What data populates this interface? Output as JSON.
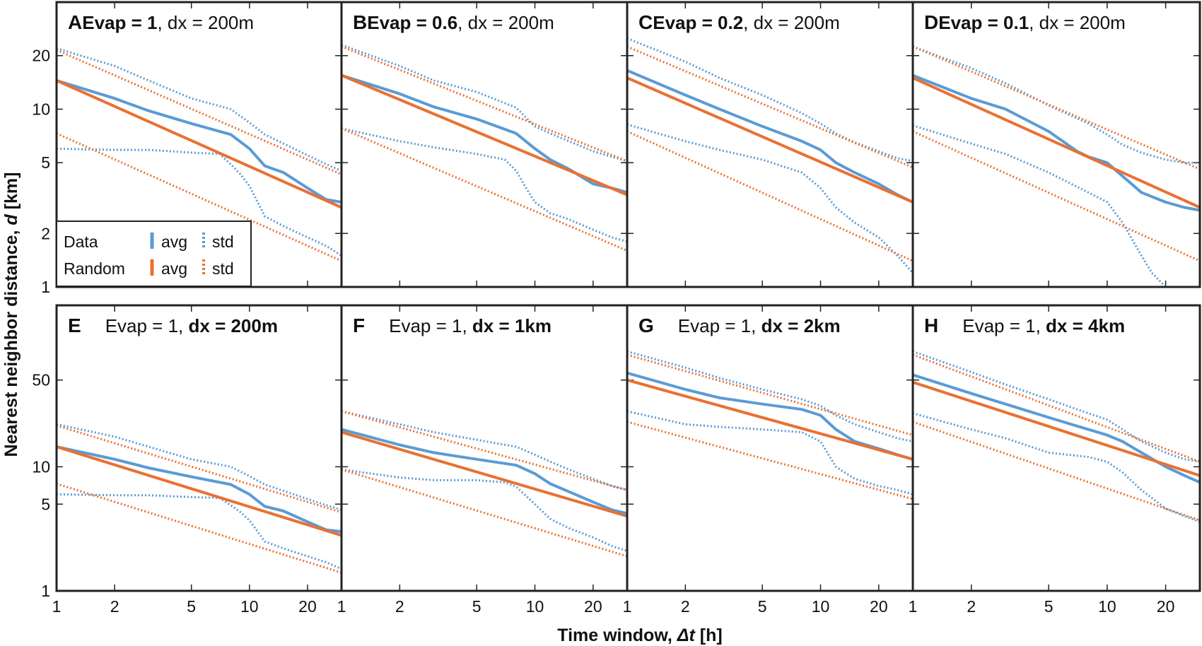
{
  "figure": {
    "ylabel_prefix": "Nearest neighbor distance, ",
    "ylabel_var": "d",
    "ylabel_unit": " [km]",
    "xlabel_prefix": "Time window, ",
    "xlabel_var": "Δt",
    "xlabel_unit": " [h]"
  },
  "legend": {
    "data_label": "Data",
    "random_label": "Random",
    "avg_label": "avg",
    "std_label": "std"
  },
  "colors": {
    "data": "#5B9BD5",
    "random": "#E97132",
    "frame": "#222222"
  },
  "chart_data": [
    {
      "type": "line",
      "letter": "A",
      "title_plain_before": "",
      "title_bold": "Evap = 1",
      "title_plain_after": ", dx = 200m",
      "xscale": "log",
      "yscale": "log",
      "xlim": [
        1,
        30
      ],
      "ylim": [
        1,
        40
      ],
      "series": [
        {
          "name": "Data avg",
          "x": [
            1,
            2,
            3,
            5,
            8,
            10,
            12,
            15,
            20,
            25,
            30
          ],
          "y": [
            14.5,
            11.5,
            9.8,
            8.3,
            7.2,
            6.0,
            4.8,
            4.4,
            3.6,
            3.1,
            3.0
          ]
        },
        {
          "name": "Data std upper",
          "x": [
            1,
            2,
            3,
            5,
            8,
            10,
            12,
            15,
            20,
            25,
            30
          ],
          "y": [
            22,
            17.5,
            14.5,
            11.5,
            10,
            8.4,
            7.2,
            6.4,
            5.5,
            4.9,
            4.5
          ]
        },
        {
          "name": "Data std lower",
          "x": [
            1,
            2,
            3,
            5,
            7,
            8,
            9,
            10,
            12,
            15,
            20,
            25,
            30
          ],
          "y": [
            6,
            5.9,
            5.9,
            5.7,
            5.6,
            4.9,
            4.3,
            3.7,
            2.5,
            2.2,
            1.9,
            1.7,
            1.5
          ]
        },
        {
          "name": "Random avg",
          "x": [
            1,
            30
          ],
          "y": [
            14.5,
            2.8
          ]
        },
        {
          "name": "Random std upper",
          "x": [
            1,
            30
          ],
          "y": [
            21.5,
            4.3
          ]
        },
        {
          "name": "Random std lower",
          "x": [
            1,
            30
          ],
          "y": [
            7.3,
            1.4
          ]
        }
      ]
    },
    {
      "type": "line",
      "letter": "B",
      "title_plain_before": "",
      "title_bold": "Evap = 0.6",
      "title_plain_after": ", dx = 200m",
      "xscale": "log",
      "yscale": "log",
      "xlim": [
        1,
        30
      ],
      "ylim": [
        1,
        40
      ],
      "series": [
        {
          "name": "Data avg",
          "x": [
            1,
            2,
            3,
            5,
            8,
            10,
            12,
            15,
            20,
            25,
            30
          ],
          "y": [
            15.5,
            12.2,
            10.3,
            8.8,
            7.3,
            6.0,
            5.2,
            4.6,
            3.8,
            3.6,
            3.4
          ]
        },
        {
          "name": "Data std upper",
          "x": [
            1,
            2,
            3,
            5,
            8,
            10,
            12,
            15,
            20,
            25,
            30
          ],
          "y": [
            23,
            17.5,
            14.5,
            12.5,
            10.2,
            8.0,
            7.3,
            6.6,
            5.8,
            5.4,
            5.1
          ]
        },
        {
          "name": "Data std lower",
          "x": [
            1,
            2,
            3,
            5,
            7,
            8,
            9,
            10,
            12,
            15,
            20,
            25,
            30
          ],
          "y": [
            7.8,
            6.6,
            6.1,
            5.6,
            5.2,
            4.5,
            3.6,
            3.0,
            2.6,
            2.4,
            2.1,
            1.9,
            1.8
          ]
        },
        {
          "name": "Random avg",
          "x": [
            1,
            30
          ],
          "y": [
            15.5,
            3.3
          ]
        },
        {
          "name": "Random std upper",
          "x": [
            1,
            30
          ],
          "y": [
            22.5,
            5.1
          ]
        },
        {
          "name": "Random std lower",
          "x": [
            1,
            30
          ],
          "y": [
            7.8,
            1.6
          ]
        }
      ]
    },
    {
      "type": "line",
      "letter": "C",
      "title_plain_before": "",
      "title_bold": "Evap = 0.2",
      "title_plain_after": ", dx = 200m",
      "xscale": "log",
      "yscale": "log",
      "xlim": [
        1,
        30
      ],
      "ylim": [
        1,
        40
      ],
      "series": [
        {
          "name": "Data avg",
          "x": [
            1,
            2,
            3,
            5,
            8,
            10,
            12,
            15,
            20,
            25,
            30
          ],
          "y": [
            16.5,
            12.0,
            10.0,
            8.0,
            6.6,
            5.9,
            5.0,
            4.4,
            3.8,
            3.3,
            3.0
          ]
        },
        {
          "name": "Data std upper",
          "x": [
            1,
            2,
            3,
            5,
            8,
            10,
            12,
            15,
            20,
            25,
            30
          ],
          "y": [
            25,
            18.5,
            15,
            12,
            9.5,
            8.3,
            7.3,
            6.5,
            5.8,
            5.3,
            5.1
          ]
        },
        {
          "name": "Data std lower",
          "x": [
            1,
            2,
            3,
            5,
            8,
            10,
            12,
            15,
            20,
            25,
            30
          ],
          "y": [
            8.2,
            6.6,
            5.9,
            5.2,
            4.4,
            3.6,
            2.8,
            2.3,
            1.9,
            1.5,
            1.2
          ]
        },
        {
          "name": "Random avg",
          "x": [
            1,
            30
          ],
          "y": [
            15,
            3.0
          ]
        },
        {
          "name": "Random std upper",
          "x": [
            1,
            30
          ],
          "y": [
            22.5,
            4.7
          ]
        },
        {
          "name": "Random std lower",
          "x": [
            1,
            30
          ],
          "y": [
            7.5,
            1.4
          ]
        }
      ]
    },
    {
      "type": "line",
      "letter": "D",
      "title_plain_before": "",
      "title_bold": "Evap = 0.1",
      "title_plain_after": ", dx = 200m",
      "xscale": "log",
      "yscale": "log",
      "xlim": [
        1,
        30
      ],
      "ylim": [
        1,
        40
      ],
      "series": [
        {
          "name": "Data avg",
          "x": [
            1,
            2,
            3,
            5,
            7,
            8,
            10,
            12,
            15,
            20,
            25,
            30
          ],
          "y": [
            15.5,
            11.5,
            10.0,
            7.5,
            5.8,
            5.4,
            5.0,
            4.2,
            3.4,
            3.0,
            2.8,
            2.7
          ]
        },
        {
          "name": "Data std upper",
          "x": [
            1,
            2,
            3,
            5,
            8,
            10,
            12,
            15,
            20,
            25,
            30
          ],
          "y": [
            22.5,
            17,
            14,
            10.5,
            8.3,
            7.2,
            6.3,
            5.7,
            5.2,
            5.0,
            5.0
          ]
        },
        {
          "name": "Data std lower",
          "x": [
            1,
            2,
            3,
            5,
            8,
            10,
            12,
            15,
            17,
            20
          ],
          "y": [
            8.1,
            6.4,
            5.6,
            4.4,
            3.4,
            3.0,
            2.3,
            1.5,
            1.2,
            1.0
          ]
        },
        {
          "name": "Random avg",
          "x": [
            1,
            30
          ],
          "y": [
            15,
            2.8
          ]
        },
        {
          "name": "Random std upper",
          "x": [
            1,
            30
          ],
          "y": [
            22.5,
            4.6
          ]
        },
        {
          "name": "Random std lower",
          "x": [
            1,
            30
          ],
          "y": [
            7.5,
            1.4
          ]
        }
      ]
    },
    {
      "type": "line",
      "letter": "E",
      "title_plain_before": "Evap = 1, ",
      "title_bold": "dx = 200m",
      "title_plain_after": "",
      "xscale": "log",
      "yscale": "log",
      "xlim": [
        1,
        30
      ],
      "ylim": [
        1,
        200
      ],
      "series": [
        {
          "name": "Data avg",
          "x": [
            1,
            2,
            3,
            5,
            8,
            10,
            12,
            15,
            20,
            25,
            30
          ],
          "y": [
            14.5,
            11.5,
            9.8,
            8.3,
            7.2,
            6.0,
            4.8,
            4.4,
            3.6,
            3.1,
            3.0
          ]
        },
        {
          "name": "Data std upper",
          "x": [
            1,
            2,
            3,
            5,
            8,
            10,
            12,
            15,
            20,
            25,
            30
          ],
          "y": [
            22,
            17.5,
            14.5,
            11.5,
            10,
            8.4,
            7.2,
            6.4,
            5.5,
            4.9,
            4.5
          ]
        },
        {
          "name": "Data std lower",
          "x": [
            1,
            2,
            3,
            5,
            7,
            8,
            9,
            10,
            12,
            15,
            20,
            25,
            30
          ],
          "y": [
            6,
            5.9,
            5.9,
            5.7,
            5.6,
            4.9,
            4.3,
            3.7,
            2.5,
            2.2,
            1.9,
            1.7,
            1.5
          ]
        },
        {
          "name": "Random avg",
          "x": [
            1,
            30
          ],
          "y": [
            14.5,
            2.8
          ]
        },
        {
          "name": "Random std upper",
          "x": [
            1,
            30
          ],
          "y": [
            21.5,
            4.3
          ]
        },
        {
          "name": "Random std lower",
          "x": [
            1,
            30
          ],
          "y": [
            7.3,
            1.4
          ]
        }
      ]
    },
    {
      "type": "line",
      "letter": "F",
      "title_plain_before": "Evap = 1, ",
      "title_bold": "dx = 1km",
      "title_plain_after": "",
      "xscale": "log",
      "yscale": "log",
      "xlim": [
        1,
        30
      ],
      "ylim": [
        1,
        200
      ],
      "series": [
        {
          "name": "Data avg",
          "x": [
            1,
            2,
            3,
            5,
            8,
            10,
            12,
            15,
            20,
            25,
            30
          ],
          "y": [
            20,
            15,
            13,
            11.5,
            10.3,
            8.8,
            7.3,
            6.3,
            5.2,
            4.5,
            4.2
          ]
        },
        {
          "name": "Data std upper",
          "x": [
            1,
            2,
            3,
            5,
            8,
            10,
            12,
            15,
            20,
            25,
            30
          ],
          "y": [
            28,
            22,
            19,
            16.5,
            14.5,
            12.5,
            11,
            9.5,
            8,
            7,
            6.5
          ]
        },
        {
          "name": "Data std lower",
          "x": [
            1,
            2,
            3,
            5,
            7,
            8,
            10,
            12,
            15,
            20,
            25,
            30
          ],
          "y": [
            9.5,
            8.2,
            7.8,
            7.8,
            7.5,
            6.9,
            5.0,
            3.8,
            3.2,
            2.7,
            2.3,
            2.1
          ]
        },
        {
          "name": "Random avg",
          "x": [
            1,
            30
          ],
          "y": [
            19,
            4.0
          ]
        },
        {
          "name": "Random std upper",
          "x": [
            1,
            30
          ],
          "y": [
            28,
            6.5
          ]
        },
        {
          "name": "Random std lower",
          "x": [
            1,
            30
          ],
          "y": [
            9.5,
            1.9
          ]
        }
      ]
    },
    {
      "type": "line",
      "letter": "G",
      "title_plain_before": "Evap = 1, ",
      "title_bold": "dx = 2km",
      "title_plain_after": "",
      "xscale": "log",
      "yscale": "log",
      "xlim": [
        1,
        30
      ],
      "ylim": [
        1,
        200
      ],
      "series": [
        {
          "name": "Data avg",
          "x": [
            1,
            2,
            3,
            5,
            8,
            10,
            12,
            15,
            20,
            25,
            30
          ],
          "y": [
            57,
            42,
            36,
            32,
            29,
            26,
            20,
            16,
            14,
            12.5,
            11.5
          ]
        },
        {
          "name": "Data std upper",
          "x": [
            1,
            2,
            3,
            5,
            8,
            10,
            12,
            15,
            20,
            25,
            30
          ],
          "y": [
            85,
            63,
            52,
            42,
            35,
            31,
            26,
            22,
            19,
            17,
            16
          ]
        },
        {
          "name": "Data std lower",
          "x": [
            1,
            2,
            3,
            5,
            8,
            10,
            12,
            15,
            20,
            25,
            30
          ],
          "y": [
            28,
            22,
            21,
            20,
            19,
            16,
            10,
            8,
            7,
            6.5,
            6
          ]
        },
        {
          "name": "Random avg",
          "x": [
            1,
            30
          ],
          "y": [
            50,
            11.5
          ]
        },
        {
          "name": "Random std upper",
          "x": [
            1,
            30
          ],
          "y": [
            80,
            18
          ]
        },
        {
          "name": "Random std lower",
          "x": [
            1,
            30
          ],
          "y": [
            23,
            5.5
          ]
        }
      ]
    },
    {
      "type": "line",
      "letter": "H",
      "title_plain_before": "Evap = 1, ",
      "title_bold": "dx = 4km",
      "title_plain_after": "",
      "xscale": "log",
      "yscale": "log",
      "xlim": [
        1,
        30
      ],
      "ylim": [
        1,
        200
      ],
      "series": [
        {
          "name": "Data avg",
          "x": [
            1,
            2,
            3,
            5,
            8,
            10,
            12,
            15,
            20,
            25,
            30
          ],
          "y": [
            55,
            39,
            32,
            25,
            20,
            18,
            16,
            13,
            10,
            8.5,
            7.5
          ]
        },
        {
          "name": "Data std upper",
          "x": [
            1,
            2,
            3,
            5,
            8,
            10,
            12,
            15,
            20,
            25,
            30
          ],
          "y": [
            85,
            58,
            46,
            35,
            27,
            24,
            20,
            16,
            13,
            11.5,
            11
          ]
        },
        {
          "name": "Data std lower",
          "x": [
            1,
            2,
            3,
            5,
            8,
            10,
            12,
            15,
            20,
            25,
            30
          ],
          "y": [
            27,
            20,
            17,
            13,
            12,
            11,
            9,
            6.5,
            4.6,
            4.0,
            3.6
          ]
        },
        {
          "name": "Random avg",
          "x": [
            1,
            30
          ],
          "y": [
            48,
            8.5
          ]
        },
        {
          "name": "Random std upper",
          "x": [
            1,
            30
          ],
          "y": [
            80,
            11
          ]
        },
        {
          "name": "Random std lower",
          "x": [
            1,
            30
          ],
          "y": [
            23,
            3.7
          ]
        }
      ]
    }
  ],
  "axes": {
    "x_ticks": [
      1,
      2,
      5,
      10,
      20
    ],
    "y_ticks_top": [
      1,
      2,
      5,
      10,
      20
    ],
    "y_ticks_bottom": [
      1,
      5,
      10,
      50
    ]
  }
}
